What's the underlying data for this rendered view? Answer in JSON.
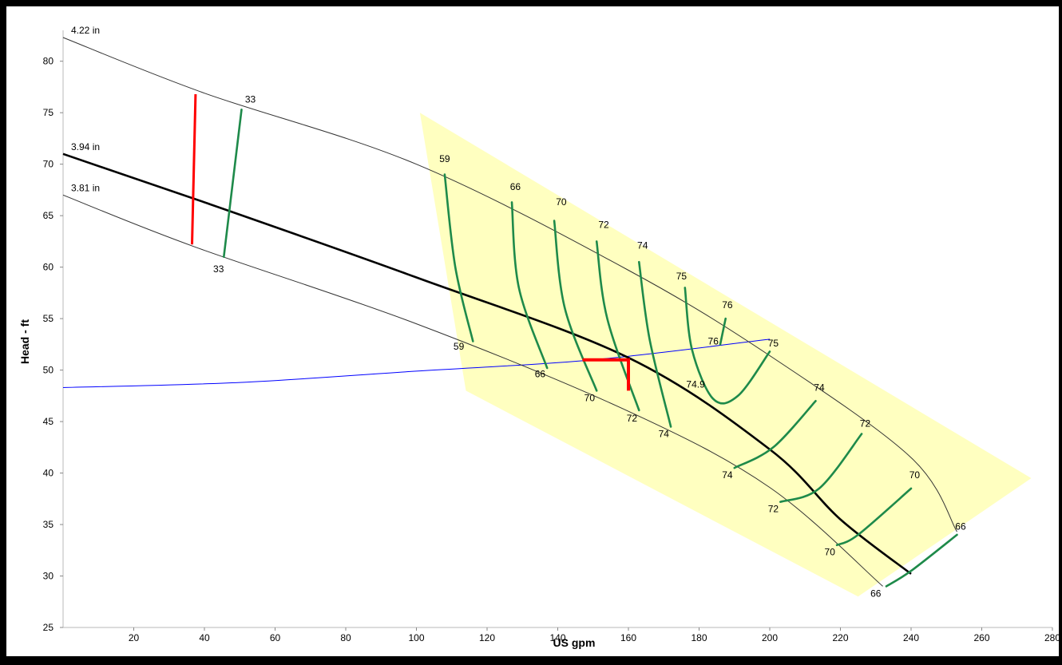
{
  "chart_data": {
    "type": "line",
    "xlabel": "US gpm",
    "ylabel": "Head - ft",
    "xlim": [
      0,
      280
    ],
    "ylim": [
      25,
      83
    ],
    "x_ticks": [
      20,
      40,
      60,
      80,
      100,
      120,
      140,
      160,
      180,
      200,
      220,
      240,
      260,
      280
    ],
    "y_ticks": [
      25,
      30,
      35,
      40,
      45,
      50,
      55,
      60,
      65,
      70,
      75,
      80
    ],
    "colors": {
      "impeller_curve": "#333333",
      "selected_curve": "#000000",
      "efficiency": "#1e8a4a",
      "npsh_marker": "#ff0000",
      "system_curve": "#0000ff",
      "preferred_region": "#ffffc0"
    },
    "impeller_curves": [
      {
        "name": "4.22 in",
        "selected": false,
        "points": [
          [
            0,
            82.3
          ],
          [
            40,
            76.9
          ],
          [
            100,
            70.0
          ],
          [
            160,
            59.7
          ],
          [
            200,
            51.4
          ],
          [
            240,
            41.5
          ],
          [
            253,
            34.3
          ]
        ]
      },
      {
        "name": "3.94 in",
        "selected": true,
        "points": [
          [
            0,
            71.0
          ],
          [
            40,
            66.3
          ],
          [
            100,
            59.0
          ],
          [
            160,
            51.2
          ],
          [
            200,
            42.3
          ],
          [
            220,
            35.5
          ],
          [
            240,
            30.2
          ]
        ]
      },
      {
        "name": "3.81 in",
        "selected": false,
        "points": [
          [
            0,
            67.0
          ],
          [
            37,
            62.0
          ],
          [
            100,
            54.5
          ],
          [
            160,
            46.0
          ],
          [
            200,
            38.6
          ],
          [
            232,
            29.0
          ]
        ]
      }
    ],
    "system_curve": [
      [
        0,
        48.3
      ],
      [
        50,
        48.8
      ],
      [
        100,
        49.9
      ],
      [
        150,
        51.0
      ],
      [
        200,
        53.0
      ]
    ],
    "preferred_region": [
      [
        101,
        75.0
      ],
      [
        274,
        39.5
      ],
      [
        225,
        28.0
      ],
      [
        114,
        48.0
      ]
    ],
    "efficiency_lines": [
      {
        "value": "33",
        "points": [
          [
            50.5,
            75.3
          ],
          [
            45.5,
            61.0
          ]
        ],
        "labels": [
          {
            "text": "33",
            "x": 53,
            "y": 76
          },
          {
            "text": "33",
            "x": 44,
            "y": 59.5
          }
        ]
      },
      {
        "value": "59",
        "points": [
          [
            108,
            69.0
          ],
          [
            111,
            60.0
          ],
          [
            116,
            52.8
          ]
        ],
        "labels": [
          {
            "text": "59",
            "x": 108,
            "y": 70.2
          },
          {
            "text": "59",
            "x": 112,
            "y": 52.0
          }
        ]
      },
      {
        "value": "66",
        "points": [
          [
            127,
            66.3
          ],
          [
            129,
            58.0
          ],
          [
            137,
            50.2
          ]
        ],
        "labels": [
          {
            "text": "66",
            "x": 128,
            "y": 67.5
          },
          {
            "text": "66",
            "x": 135,
            "y": 49.3
          }
        ]
      },
      {
        "value": "70",
        "points": [
          [
            139,
            64.5
          ],
          [
            142,
            56.0
          ],
          [
            151,
            48.0
          ]
        ],
        "labels": [
          {
            "text": "70",
            "x": 141,
            "y": 66.0
          },
          {
            "text": "70",
            "x": 149,
            "y": 47.0
          }
        ]
      },
      {
        "value": "72",
        "points": [
          [
            151,
            62.5
          ],
          [
            154,
            55.0
          ],
          [
            163,
            46.1
          ]
        ],
        "labels": [
          {
            "text": "72",
            "x": 153,
            "y": 63.8
          },
          {
            "text": "72",
            "x": 161,
            "y": 45.0
          }
        ]
      },
      {
        "value": "74",
        "points": [
          [
            163,
            60.5
          ],
          [
            166,
            53.0
          ],
          [
            172,
            44.5
          ]
        ],
        "labels": [
          {
            "text": "74",
            "x": 164,
            "y": 61.8
          },
          {
            "text": "74",
            "x": 170,
            "y": 43.5
          }
        ]
      },
      {
        "value": "75",
        "points": [
          [
            176,
            58.0
          ],
          [
            178,
            52.0
          ],
          [
            184,
            47.2
          ],
          [
            191,
            47.5
          ],
          [
            200,
            51.8
          ]
        ],
        "labels": [
          {
            "text": "75",
            "x": 175,
            "y": 58.8
          },
          {
            "text": "75",
            "x": 201,
            "y": 52.3
          }
        ]
      },
      {
        "value": "74.9",
        "points": [],
        "labels": [
          {
            "text": "74.9",
            "x": 179,
            "y": 48.3
          }
        ]
      },
      {
        "value": "76",
        "points": [
          [
            187.5,
            55.0
          ],
          [
            186,
            52.5
          ]
        ],
        "labels": [
          {
            "text": "76",
            "x": 188,
            "y": 56.0
          },
          {
            "text": "76",
            "x": 184,
            "y": 52.5
          }
        ]
      },
      {
        "value": "74b",
        "points": [
          [
            213,
            47.0
          ],
          [
            201,
            42.5
          ],
          [
            190,
            40.5
          ]
        ],
        "labels": [
          {
            "text": "74",
            "x": 214,
            "y": 48.0
          },
          {
            "text": "74",
            "x": 188,
            "y": 39.5
          }
        ]
      },
      {
        "value": "72b",
        "points": [
          [
            226,
            43.8
          ],
          [
            214,
            38.5
          ],
          [
            203,
            37.2
          ]
        ],
        "labels": [
          {
            "text": "72",
            "x": 227,
            "y": 44.5
          },
          {
            "text": "72",
            "x": 201,
            "y": 36.2
          }
        ]
      },
      {
        "value": "70b",
        "points": [
          [
            240,
            38.5
          ],
          [
            225,
            34.0
          ],
          [
            219,
            33.0
          ]
        ],
        "labels": [
          {
            "text": "70",
            "x": 241,
            "y": 39.5
          },
          {
            "text": "70",
            "x": 217,
            "y": 32.0
          }
        ]
      },
      {
        "value": "66b",
        "points": [
          [
            253,
            34.0
          ],
          [
            240,
            30.5
          ],
          [
            233,
            29.0
          ]
        ],
        "labels": [
          {
            "text": "66",
            "x": 254,
            "y": 34.5
          },
          {
            "text": "66",
            "x": 230,
            "y": 28.0
          }
        ]
      }
    ],
    "npsh_marker_left": [
      [
        37.5,
        76.8
      ],
      [
        36.5,
        62.2
      ]
    ],
    "duty_point_marker": [
      [
        147,
        51.0
      ],
      [
        160,
        51.0
      ],
      [
        160,
        48.0
      ]
    ]
  }
}
